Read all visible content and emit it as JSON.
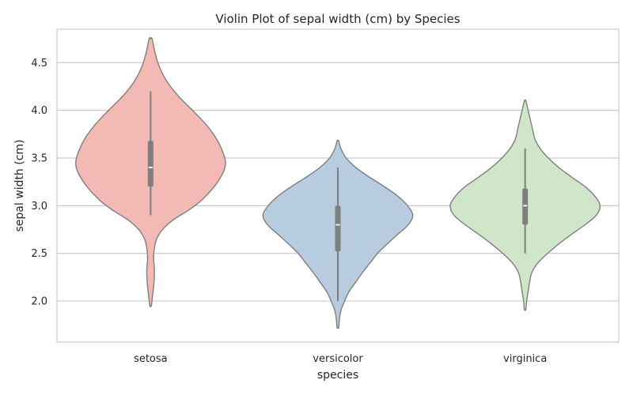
{
  "chart_data": {
    "type": "violin",
    "title": "Violin Plot of sepal width (cm) by Species",
    "xlabel": "species",
    "ylabel": "sepal width (cm)",
    "categories": [
      "setosa",
      "versicolor",
      "virginica"
    ],
    "ylim": [
      1.57,
      4.85
    ],
    "yticks": [
      2.0,
      2.5,
      3.0,
      3.5,
      4.0,
      4.5
    ],
    "ytick_labels": [
      "2.0",
      "2.5",
      "3.0",
      "3.5",
      "4.0",
      "4.5"
    ],
    "grid": "horizontal",
    "colors": [
      "#f2b9b5",
      "#b8cce0",
      "#cfe6c9"
    ],
    "edge_color": "#7f7f7f",
    "violins": [
      {
        "category": "setosa",
        "kde_max": 4.75,
        "kde_min": 1.95,
        "box": {
          "q1": 3.2,
          "median": 3.4,
          "q3": 3.68,
          "whisker_low": 2.9,
          "whisker_high": 4.2
        },
        "profile": [
          [
            4.75,
            0.02
          ],
          [
            4.6,
            0.06
          ],
          [
            4.45,
            0.12
          ],
          [
            4.3,
            0.22
          ],
          [
            4.15,
            0.37
          ],
          [
            4.0,
            0.56
          ],
          [
            3.85,
            0.74
          ],
          [
            3.7,
            0.88
          ],
          [
            3.55,
            0.97
          ],
          [
            3.45,
            1.0
          ],
          [
            3.35,
            0.97
          ],
          [
            3.2,
            0.85
          ],
          [
            3.05,
            0.67
          ],
          [
            2.95,
            0.5
          ],
          [
            2.85,
            0.3
          ],
          [
            2.75,
            0.16
          ],
          [
            2.65,
            0.08
          ],
          [
            2.55,
            0.05
          ],
          [
            2.45,
            0.04
          ],
          [
            2.35,
            0.05
          ],
          [
            2.25,
            0.05
          ],
          [
            2.15,
            0.04
          ],
          [
            2.05,
            0.025
          ],
          [
            1.95,
            0.01
          ]
        ]
      },
      {
        "category": "versicolor",
        "kde_max": 3.68,
        "kde_min": 1.72,
        "box": {
          "q1": 2.52,
          "median": 2.8,
          "q3": 3.0,
          "whisker_low": 2.0,
          "whisker_high": 3.4
        },
        "profile": [
          [
            3.68,
            0.01
          ],
          [
            3.6,
            0.04
          ],
          [
            3.5,
            0.11
          ],
          [
            3.4,
            0.24
          ],
          [
            3.3,
            0.42
          ],
          [
            3.2,
            0.62
          ],
          [
            3.1,
            0.8
          ],
          [
            3.0,
            0.93
          ],
          [
            2.9,
            1.0
          ],
          [
            2.8,
            0.94
          ],
          [
            2.7,
            0.8
          ],
          [
            2.6,
            0.66
          ],
          [
            2.5,
            0.53
          ],
          [
            2.4,
            0.43
          ],
          [
            2.3,
            0.33
          ],
          [
            2.2,
            0.24
          ],
          [
            2.1,
            0.15
          ],
          [
            2.0,
            0.09
          ],
          [
            1.9,
            0.04
          ],
          [
            1.8,
            0.02
          ],
          [
            1.72,
            0.01
          ]
        ]
      },
      {
        "category": "virginica",
        "kde_max": 4.1,
        "kde_min": 1.91,
        "box": {
          "q1": 2.8,
          "median": 3.0,
          "q3": 3.18,
          "whisker_low": 2.5,
          "whisker_high": 3.6
        },
        "profile": [
          [
            4.1,
            0.01
          ],
          [
            4.0,
            0.04
          ],
          [
            3.9,
            0.07
          ],
          [
            3.8,
            0.1
          ],
          [
            3.7,
            0.13
          ],
          [
            3.6,
            0.2
          ],
          [
            3.5,
            0.31
          ],
          [
            3.4,
            0.45
          ],
          [
            3.3,
            0.62
          ],
          [
            3.2,
            0.8
          ],
          [
            3.1,
            0.93
          ],
          [
            3.0,
            1.0
          ],
          [
            2.9,
            0.95
          ],
          [
            2.8,
            0.8
          ],
          [
            2.7,
            0.62
          ],
          [
            2.6,
            0.45
          ],
          [
            2.5,
            0.3
          ],
          [
            2.4,
            0.17
          ],
          [
            2.3,
            0.09
          ],
          [
            2.2,
            0.06
          ],
          [
            2.1,
            0.04
          ],
          [
            2.0,
            0.02
          ],
          [
            1.91,
            0.01
          ]
        ]
      }
    ]
  }
}
